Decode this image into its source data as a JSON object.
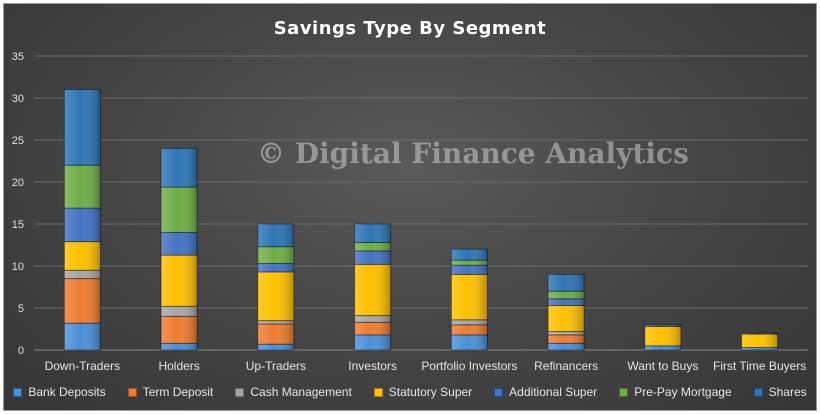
{
  "chart_data": {
    "type": "bar",
    "stacked": true,
    "title": "Savings Type By Segment",
    "watermark": "© Digital Finance Analytics",
    "categories": [
      "Down-Traders",
      "Holders",
      "Up-Traders",
      "Investors",
      "Portfolio Investors",
      "Refinancers",
      "Want to Buys",
      "First Time Buyers"
    ],
    "ylim": [
      0,
      35
    ],
    "yticks": [
      0,
      5,
      10,
      15,
      20,
      25,
      30,
      35
    ],
    "grid": true,
    "legend_position": "bottom",
    "series": [
      {
        "name": "Bank Deposits",
        "color": "#4a90d9",
        "values": [
          3.2,
          0.8,
          0.7,
          1.8,
          1.8,
          0.8,
          0.5,
          0.3
        ]
      },
      {
        "name": "Term Deposit",
        "color": "#ed7d31",
        "values": [
          5.3,
          3.2,
          2.4,
          1.5,
          1.2,
          1.0,
          0.0,
          0.0
        ]
      },
      {
        "name": "Cash Management",
        "color": "#a5a5a5",
        "values": [
          1.0,
          1.2,
          0.4,
          0.8,
          0.6,
          0.4,
          0.0,
          0.0
        ]
      },
      {
        "name": "Statutory Super",
        "color": "#ffc000",
        "values": [
          3.4,
          6.1,
          5.8,
          6.1,
          5.4,
          3.1,
          2.3,
          1.6
        ]
      },
      {
        "name": "Additional Super",
        "color": "#4472c4",
        "values": [
          4.0,
          2.7,
          1.0,
          1.6,
          1.1,
          0.8,
          0.0,
          0.0
        ]
      },
      {
        "name": "Pre-Pay Mortgage",
        "color": "#70ad47",
        "values": [
          5.1,
          5.4,
          2.0,
          1.0,
          0.6,
          0.9,
          0.0,
          0.0
        ]
      },
      {
        "name": "Shares",
        "color": "#2e75b6",
        "values": [
          9.0,
          4.6,
          2.7,
          2.2,
          1.3,
          2.0,
          0.2,
          0.1
        ]
      }
    ]
  }
}
